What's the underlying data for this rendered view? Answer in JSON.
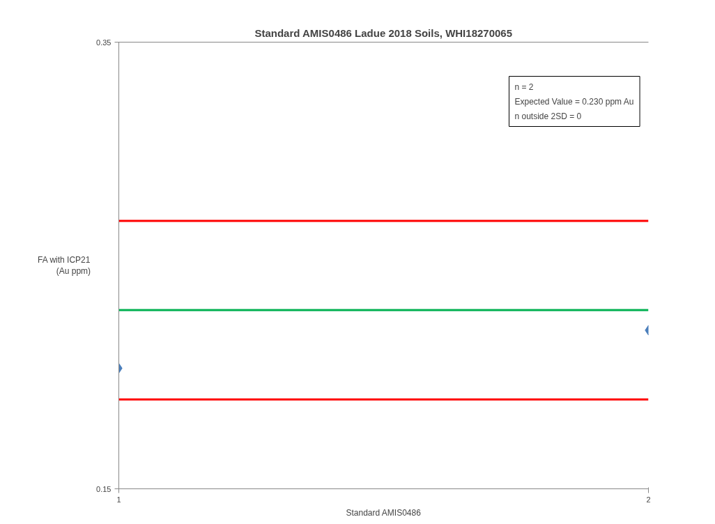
{
  "chart_data": {
    "type": "scatter",
    "title": "Standard AMIS0486 Ladue 2018 Soils, WHI18270065",
    "xlabel": "Standard AMIS0486",
    "ylabel": "FA with ICP21\n(Au ppm)",
    "x": [
      1,
      2
    ],
    "series": [
      {
        "color": "#4a7ebb",
        "values": [
          0.204,
          0.221
        ]
      }
    ],
    "marker": "diamond",
    "xlim": [
      1,
      2
    ],
    "xticks": [
      1,
      2
    ],
    "ylim": [
      0.15,
      0.35
    ],
    "yticks": [
      0.15,
      0.35
    ],
    "ref_lines": [
      {
        "axis": "y",
        "value": 0.27,
        "label": null,
        "color": "#ff0000"
      },
      {
        "axis": "y",
        "value": 0.23,
        "label": null,
        "color": "#00b050"
      },
      {
        "axis": "y",
        "value": 0.19,
        "label": null,
        "color": "#ff0000"
      }
    ],
    "annotations": [
      "n = 2",
      "Expected Value = 0.230 ppm Au",
      "n outside 2SD = 0"
    ]
  }
}
